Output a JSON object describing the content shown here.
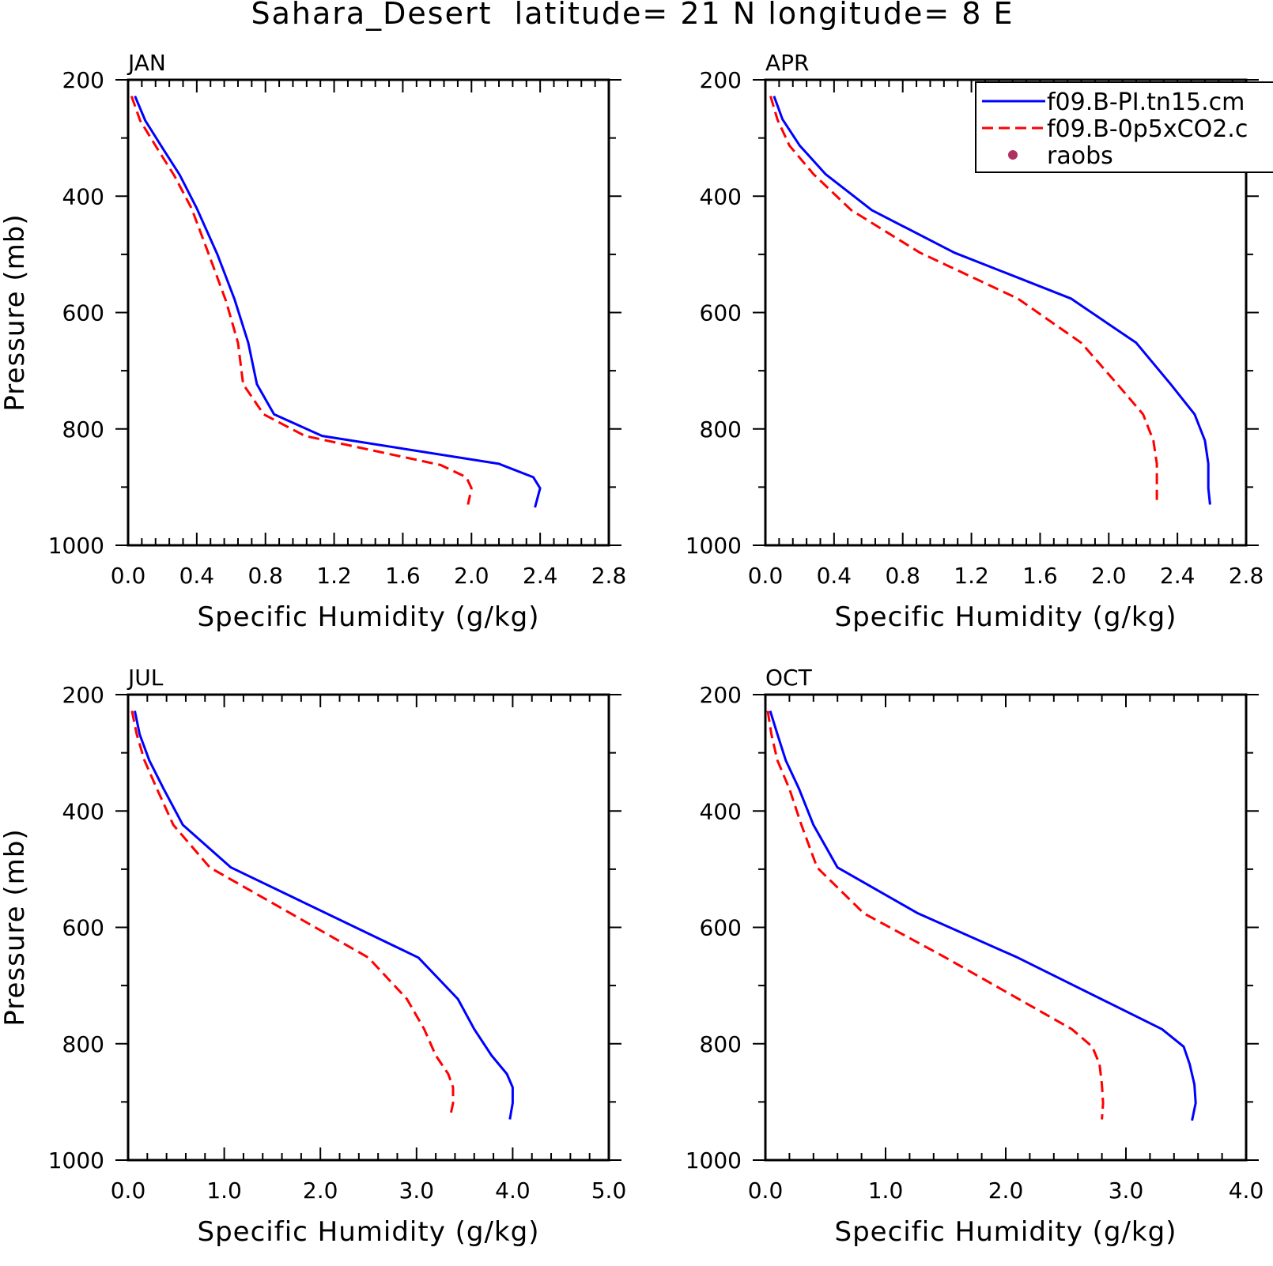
{
  "figure": {
    "title": "Sahara_Desert  latitude= 21 N longitude= 8 E"
  },
  "legend": {
    "entries": [
      {
        "label": "f09.B-PI.tn15.cm",
        "color": "#0000ff",
        "style": "solid"
      },
      {
        "label": "f09.B-0p5xCO2.c",
        "color": "#ff0000",
        "style": "dashed"
      },
      {
        "label": "raobs",
        "color": "#b03060",
        "style": "dot"
      }
    ]
  },
  "chart_data": [
    {
      "type": "line",
      "title": "JAN",
      "xlabel": "Specific Humidity (g/kg)",
      "ylabel": "Pressure (mb)",
      "xlim": [
        0,
        2.8
      ],
      "ylim": [
        1000,
        200
      ],
      "y_reversed": true,
      "xticks": [
        0,
        0.4,
        0.8,
        1.2,
        1.6,
        2.0,
        2.4,
        2.8
      ],
      "xtick_labels": [
        "0.0",
        "0.4",
        "0.8",
        "1.2",
        "1.6",
        "2.0",
        "2.4",
        "2.8"
      ],
      "yticks": [
        200,
        400,
        600,
        800,
        1000
      ],
      "ytick_labels": [
        "200",
        "400",
        "600",
        "800",
        "1000"
      ],
      "series": [
        {
          "name": "f09.B-PI.tn15.cm",
          "color": "#0000ff",
          "dash": "solid",
          "x": [
            0.04,
            0.1,
            0.2,
            0.3,
            0.4,
            0.52,
            0.62,
            0.7,
            0.75,
            0.85,
            1.13,
            2.16,
            2.36,
            2.4,
            2.37
          ],
          "y": [
            228,
            270,
            317,
            363,
            421,
            500,
            577,
            652,
            723,
            775,
            812,
            860,
            883,
            902,
            935
          ]
        },
        {
          "name": "f09.B-0p5xCO2.c",
          "color": "#ff0000",
          "dash": "dashed",
          "x": [
            0.02,
            0.07,
            0.17,
            0.27,
            0.37,
            0.47,
            0.57,
            0.64,
            0.67,
            0.79,
            1.03,
            1.82,
            1.97,
            2.0,
            1.98
          ],
          "y": [
            228,
            270,
            318,
            365,
            421,
            500,
            580,
            652,
            723,
            775,
            812,
            862,
            883,
            902,
            930
          ]
        }
      ]
    },
    {
      "type": "line",
      "title": "APR",
      "xlabel": "Specific Humidity (g/kg)",
      "ylabel": "",
      "xlim": [
        0,
        2.8
      ],
      "ylim": [
        1000,
        200
      ],
      "y_reversed": true,
      "xticks": [
        0,
        0.4,
        0.8,
        1.2,
        1.6,
        2.0,
        2.4,
        2.8
      ],
      "xtick_labels": [
        "0.0",
        "0.4",
        "0.8",
        "1.2",
        "1.6",
        "2.0",
        "2.4",
        "2.8"
      ],
      "yticks": [
        200,
        400,
        600,
        800,
        1000
      ],
      "ytick_labels": [
        "200",
        "400",
        "600",
        "800",
        "1000"
      ],
      "series": [
        {
          "name": "f09.B-PI.tn15.cm",
          "color": "#0000ff",
          "dash": "solid",
          "x": [
            0.05,
            0.1,
            0.2,
            0.35,
            0.62,
            1.1,
            1.78,
            2.16,
            2.36,
            2.5,
            2.56,
            2.58,
            2.58,
            2.59
          ],
          "y": [
            228,
            268,
            313,
            362,
            424,
            497,
            576,
            652,
            723,
            775,
            820,
            860,
            902,
            930
          ]
        },
        {
          "name": "f09.B-0p5xCO2.c",
          "color": "#ff0000",
          "dash": "dashed",
          "x": [
            0.03,
            0.07,
            0.14,
            0.28,
            0.5,
            0.9,
            1.47,
            1.84,
            2.05,
            2.2,
            2.26,
            2.28,
            2.28
          ],
          "y": [
            228,
            268,
            313,
            362,
            424,
            497,
            576,
            652,
            723,
            775,
            820,
            860,
            922
          ]
        }
      ]
    },
    {
      "type": "line",
      "title": "JUL",
      "xlabel": "Specific Humidity (g/kg)",
      "ylabel": "Pressure (mb)",
      "xlim": [
        0,
        5.0
      ],
      "ylim": [
        1000,
        200
      ],
      "y_reversed": true,
      "xticks": [
        0,
        1,
        2,
        3,
        4,
        5
      ],
      "xtick_labels": [
        "0.0",
        "1.0",
        "2.0",
        "3.0",
        "4.0",
        "5.0"
      ],
      "yticks": [
        200,
        400,
        600,
        800,
        1000
      ],
      "ytick_labels": [
        "200",
        "400",
        "600",
        "800",
        "1000"
      ],
      "series": [
        {
          "name": "f09.B-PI.tn15.cm",
          "color": "#0000ff",
          "dash": "solid",
          "x": [
            0.07,
            0.12,
            0.22,
            0.37,
            0.57,
            1.07,
            3.02,
            3.43,
            3.6,
            3.78,
            3.94,
            4.0,
            4.0,
            3.97
          ],
          "y": [
            228,
            268,
            313,
            362,
            424,
            497,
            652,
            723,
            775,
            820,
            852,
            875,
            902,
            930
          ]
        },
        {
          "name": "f09.B-0p5xCO2.c",
          "color": "#ff0000",
          "dash": "dashed",
          "x": [
            0.04,
            0.09,
            0.17,
            0.3,
            0.47,
            0.85,
            2.5,
            2.9,
            3.08,
            3.2,
            3.33,
            3.38,
            3.38,
            3.35
          ],
          "y": [
            228,
            268,
            313,
            362,
            424,
            497,
            652,
            723,
            775,
            820,
            852,
            875,
            902,
            925
          ]
        }
      ]
    },
    {
      "type": "line",
      "title": "OCT",
      "xlabel": "Specific Humidity (g/kg)",
      "ylabel": "",
      "xlim": [
        0,
        4.0
      ],
      "ylim": [
        1000,
        200
      ],
      "y_reversed": true,
      "xticks": [
        0,
        1,
        2,
        3,
        4
      ],
      "xtick_labels": [
        "0.0",
        "1.0",
        "2.0",
        "3.0",
        "4.0"
      ],
      "yticks": [
        200,
        400,
        600,
        800,
        1000
      ],
      "ytick_labels": [
        "200",
        "400",
        "600",
        "800",
        "1000"
      ],
      "series": [
        {
          "name": "f09.B-PI.tn15.cm",
          "color": "#0000ff",
          "dash": "solid",
          "x": [
            0.04,
            0.1,
            0.17,
            0.28,
            0.4,
            0.6,
            1.27,
            2.1,
            3.3,
            3.48,
            3.53,
            3.57,
            3.58,
            3.55
          ],
          "y": [
            228,
            268,
            313,
            362,
            424,
            497,
            576,
            652,
            775,
            805,
            835,
            870,
            902,
            932
          ]
        },
        {
          "name": "f09.B-0p5xCO2.c",
          "color": "#ff0000",
          "dash": "dashed",
          "x": [
            0.02,
            0.05,
            0.1,
            0.2,
            0.3,
            0.43,
            0.82,
            1.5,
            2.55,
            2.72,
            2.78,
            2.8,
            2.81,
            2.8
          ],
          "y": [
            228,
            268,
            313,
            362,
            424,
            497,
            576,
            652,
            775,
            805,
            835,
            870,
            902,
            930
          ]
        }
      ]
    }
  ]
}
